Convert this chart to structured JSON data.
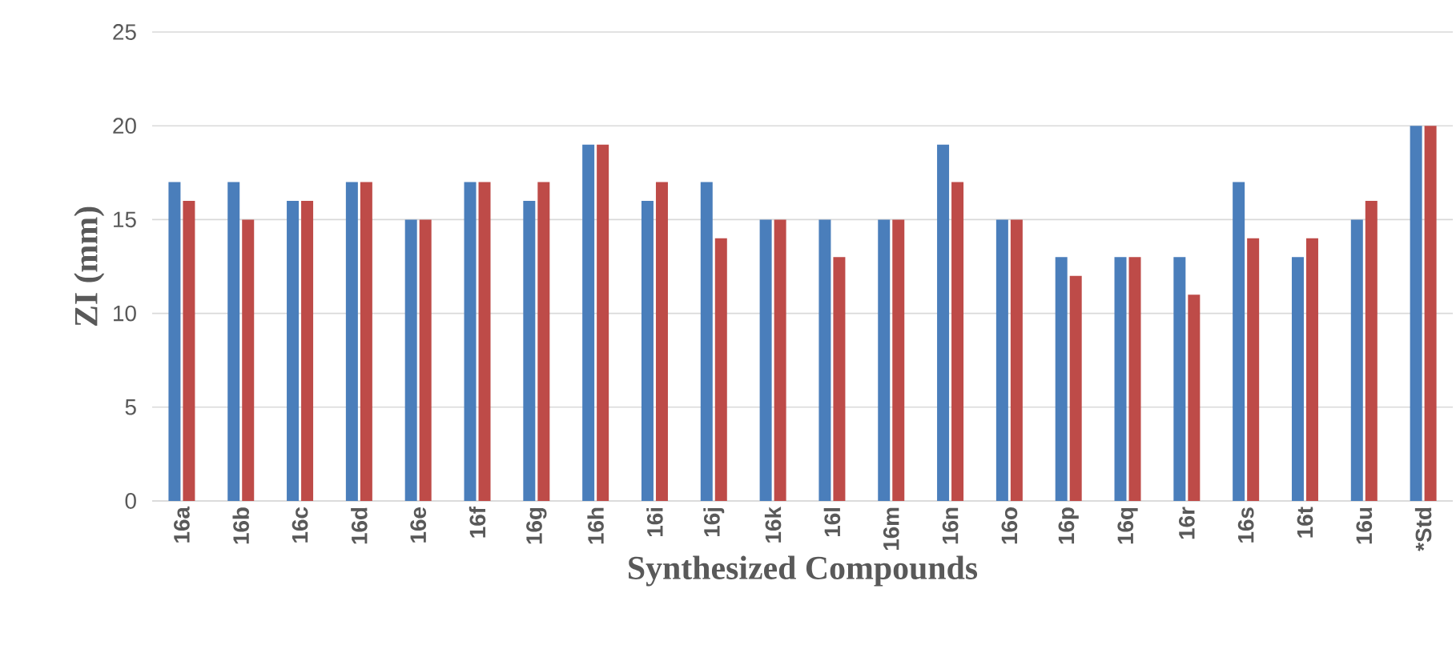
{
  "chart_data": {
    "type": "bar",
    "xlabel": "Synthesized Compounds",
    "ylabel": "ZI (mm)",
    "categories": [
      "16a",
      "16b",
      "16c",
      "16d",
      "16e",
      "16f",
      "16g",
      "16h",
      "16i",
      "16j",
      "16k",
      "16l",
      "16m",
      "16n",
      "16o",
      "16p",
      "16q",
      "16r",
      "16s",
      "16t",
      "16u",
      "*Std"
    ],
    "series": [
      {
        "color": "#4a7ebb",
        "values": [
          17,
          17,
          16,
          17,
          15,
          17,
          16,
          19,
          16,
          17,
          15,
          15,
          15,
          19,
          15,
          13,
          13,
          13,
          17,
          13,
          15,
          20
        ]
      },
      {
        "color": "#be4b48",
        "values": [
          16,
          15,
          16,
          17,
          15,
          17,
          17,
          19,
          17,
          14,
          15,
          13,
          15,
          17,
          15,
          12,
          13,
          11,
          14,
          14,
          16,
          20
        ]
      }
    ],
    "ylim": [
      0,
      25
    ],
    "yticks": [
      0,
      5,
      10,
      15,
      20,
      25
    ],
    "grid": "y"
  }
}
